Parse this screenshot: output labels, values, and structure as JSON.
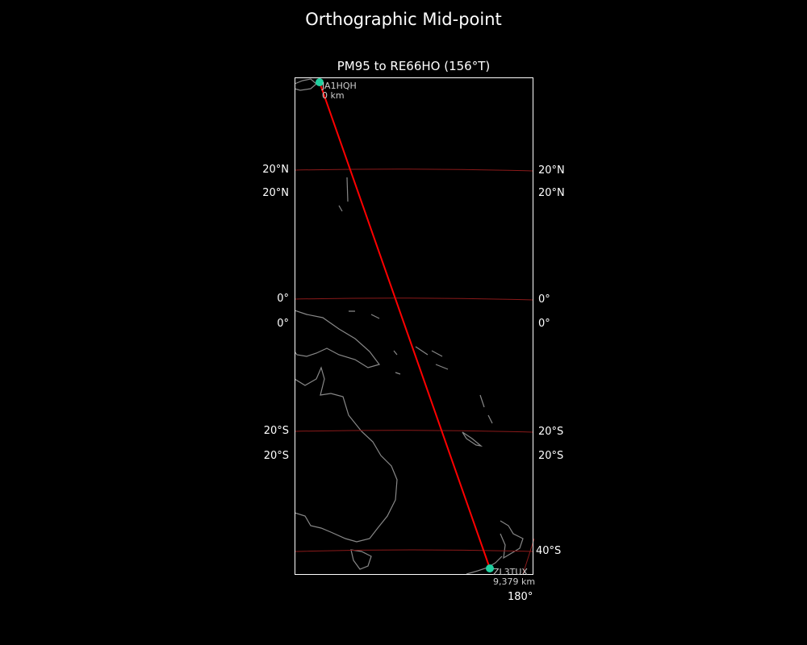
{
  "title": "Orthographic Mid-point",
  "subtitle": "PM95 to RE66HO (156°T)",
  "start": {
    "call": "JA1HQH",
    "distance": "0 km"
  },
  "end": {
    "call": "ZL3TUX",
    "distance": "9,379 km"
  },
  "lat_labels_left": [
    "20°N",
    "20°N",
    "0°",
    "0°",
    "20°S",
    "20°S"
  ],
  "lat_labels_right": [
    "20°N",
    "20°N",
    "0°",
    "0°",
    "20°S",
    "20°S",
    "40°S"
  ],
  "lon_label": "180°",
  "colors": {
    "path": "#ff0000",
    "marker": "#20d0a0",
    "grid": "#8b1a1a",
    "coast": "#888888",
    "background": "#000000"
  }
}
